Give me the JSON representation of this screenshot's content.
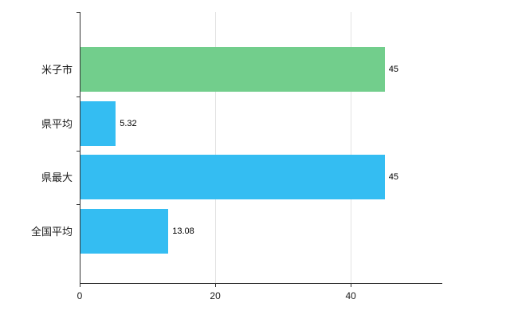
{
  "chart_data": {
    "type": "bar",
    "orientation": "horizontal",
    "title": "",
    "xlabel": "",
    "ylabel": "",
    "categories": [
      "米子市",
      "県平均",
      "県最大",
      "全国平均"
    ],
    "values": [
      45,
      5.32,
      45,
      13.08
    ],
    "value_labels": [
      "45",
      "5.32",
      "45",
      "13.08"
    ],
    "bar_colors": [
      "#72ce8c",
      "#34bdf2",
      "#34bdf2",
      "#34bdf2"
    ],
    "xlim": [
      0,
      53.5
    ],
    "xticks": [
      0,
      20,
      40
    ],
    "grid": true,
    "legend": "none",
    "axis_color": "#333333",
    "gridline_color": "#e3e3e3"
  }
}
